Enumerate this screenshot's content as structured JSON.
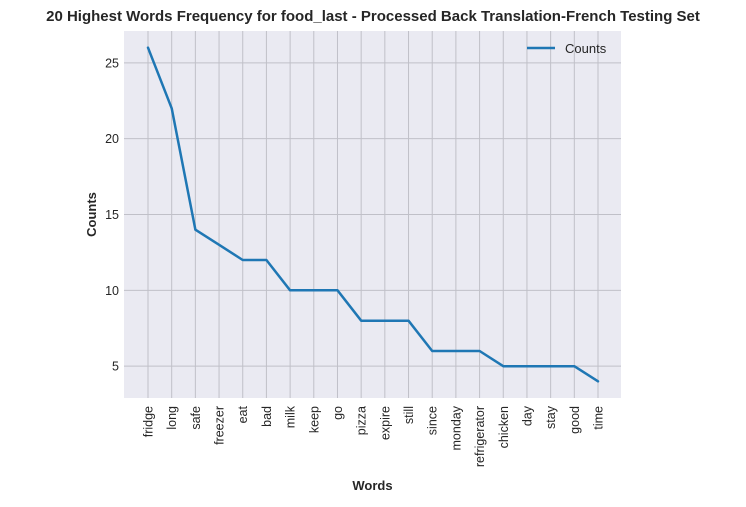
{
  "chart_data": {
    "type": "line",
    "title": "20 Highest Words Frequency for food_last - Processed Back Translation-French Testing Set",
    "xlabel": "Words",
    "ylabel": "Counts",
    "categories": [
      "fridge",
      "long",
      "safe",
      "freezer",
      "eat",
      "bad",
      "milk",
      "keep",
      "go",
      "pizza",
      "expire",
      "still",
      "since",
      "monday",
      "refrigerator",
      "chicken",
      "day",
      "stay",
      "good",
      "time"
    ],
    "series": [
      {
        "name": "Counts",
        "values": [
          26,
          22,
          14,
          13,
          12,
          12,
          10,
          10,
          10,
          8,
          8,
          8,
          6,
          6,
          6,
          5,
          5,
          5,
          5,
          4
        ],
        "color": "#1f77b4"
      }
    ],
    "ylim": [
      2.9,
      27.1
    ],
    "yticks": [
      5,
      10,
      15,
      20,
      25
    ],
    "grid": true,
    "legend": "top-right",
    "style": {
      "background": "#eaeaf2",
      "grid_color": "#c0c0c8",
      "line_color": "#1f77b4"
    }
  }
}
